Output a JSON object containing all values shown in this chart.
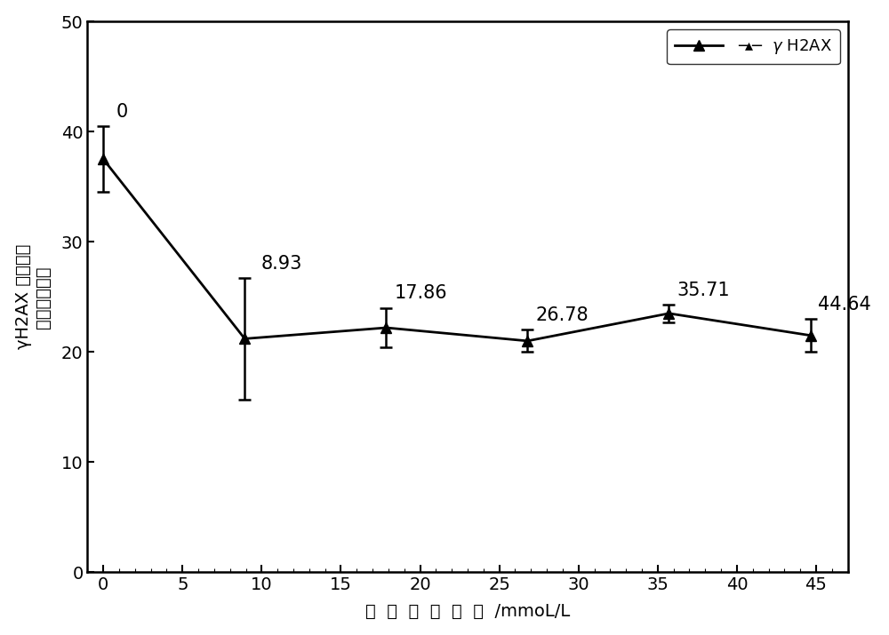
{
  "x": [
    0,
    8.93,
    17.86,
    26.78,
    35.71,
    44.64
  ],
  "y": [
    37.5,
    21.2,
    22.2,
    21.0,
    23.5,
    21.5
  ],
  "yerr": [
    3.0,
    5.5,
    1.8,
    1.0,
    0.8,
    1.5
  ],
  "labels": [
    "0",
    "8.93",
    "17.86",
    "26.78",
    "35.71",
    "44.64"
  ],
  "xlim": [
    -1,
    47
  ],
  "ylim": [
    0,
    50
  ],
  "xticks": [
    0,
    5,
    10,
    15,
    20,
    25,
    30,
    35,
    40,
    45
  ],
  "yticks": [
    0,
    10,
    20,
    30,
    40,
    50
  ],
  "xlabel_parts": [
    "一",
    "氧",
    "化",
    "碳",
    "浓",
    "度",
    "/mmoL/L"
  ],
  "ylabel_line1": "γH2AX 荧光强度",
  "ylabel_line2": "（任意单位）",
  "line_color": "#000000",
  "marker": "^",
  "marker_size": 9,
  "line_width": 2.0,
  "background_color": "#ffffff",
  "tick_fontsize": 14,
  "annotation_fontsize": 15,
  "label_fontsize": 14,
  "legend_fontsize": 13
}
